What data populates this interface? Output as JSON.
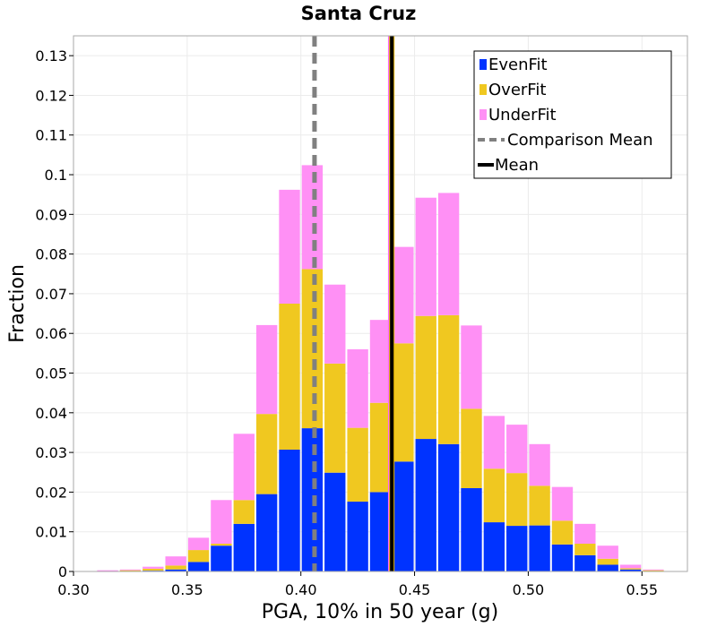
{
  "chart_data": {
    "type": "bar",
    "stacked": true,
    "title": "Santa Cruz",
    "xlabel": "PGA, 10% in 50 year (g)",
    "ylabel": "Fraction",
    "xlim": [
      0.3,
      0.57
    ],
    "ylim": [
      0,
      0.135
    ],
    "bin_width": 0.01,
    "x_ticks": [
      0.3,
      0.35,
      0.4,
      0.45,
      0.5,
      0.55
    ],
    "x_tick_labels": [
      "0.30",
      "0.35",
      "0.40",
      "0.45",
      "0.50",
      "0.55"
    ],
    "y_ticks": [
      0,
      0.01,
      0.02,
      0.03,
      0.04,
      0.05,
      0.06,
      0.07,
      0.08,
      0.09,
      0.1,
      0.11,
      0.12,
      0.13
    ],
    "y_tick_labels": [
      "0",
      "0.01",
      "0.02",
      "0.03",
      "0.04",
      "0.05",
      "0.06",
      "0.07",
      "0.08",
      "0.09",
      "0.1",
      "0.11",
      "0.12",
      "0.13"
    ],
    "bin_starts": [
      0.31,
      0.32,
      0.33,
      0.34,
      0.35,
      0.36,
      0.37,
      0.38,
      0.39,
      0.4,
      0.41,
      0.42,
      0.43,
      0.44,
      0.45,
      0.46,
      0.47,
      0.48,
      0.49,
      0.5,
      0.51,
      0.52,
      0.53,
      0.54,
      0.55
    ],
    "series": [
      {
        "name": "EvenFit",
        "color": "#0033ff",
        "values": [
          0.0,
          0.0001,
          0.0002,
          0.0005,
          0.0024,
          0.0065,
          0.012,
          0.0195,
          0.0307,
          0.0361,
          0.0249,
          0.0176,
          0.02,
          0.0277,
          0.0334,
          0.0321,
          0.021,
          0.0124,
          0.0115,
          0.0116,
          0.0068,
          0.0041,
          0.0017,
          0.0005,
          0.0001
        ]
      },
      {
        "name": "OverFit",
        "color": "#f0c820",
        "values": [
          0.0001,
          0.0002,
          0.0005,
          0.001,
          0.003,
          0.0005,
          0.006,
          0.0202,
          0.0368,
          0.0401,
          0.0275,
          0.0186,
          0.0225,
          0.0298,
          0.031,
          0.0325,
          0.02,
          0.0135,
          0.0133,
          0.01,
          0.006,
          0.0029,
          0.0015,
          0.0003,
          0.0002
        ]
      },
      {
        "name": "UnderFit",
        "color": "#ff90f5",
        "values": [
          0.0002,
          0.0002,
          0.0005,
          0.0023,
          0.0031,
          0.011,
          0.0167,
          0.0224,
          0.0287,
          0.0262,
          0.0199,
          0.0198,
          0.0209,
          0.0243,
          0.0298,
          0.0308,
          0.021,
          0.0133,
          0.0122,
          0.0105,
          0.0085,
          0.005,
          0.0033,
          0.0009,
          0.0002
        ]
      }
    ],
    "reference_lines": [
      {
        "name": "Comparison Mean",
        "x": 0.406,
        "color": "#808080",
        "style": "dashed"
      },
      {
        "name": "Mean",
        "x": 0.44,
        "color": "#000000",
        "style": "solid"
      }
    ],
    "legend": {
      "position": "top-right",
      "entries": [
        {
          "label": "EvenFit",
          "kind": "box",
          "color": "#0033ff"
        },
        {
          "label": "OverFit",
          "kind": "box",
          "color": "#f0c820"
        },
        {
          "label": "UnderFit",
          "kind": "box",
          "color": "#ff90f5"
        },
        {
          "label": "Comparison Mean",
          "kind": "dashed",
          "color": "#808080"
        },
        {
          "label": "Mean",
          "kind": "solid",
          "color": "#000000"
        }
      ]
    },
    "grid": true
  }
}
